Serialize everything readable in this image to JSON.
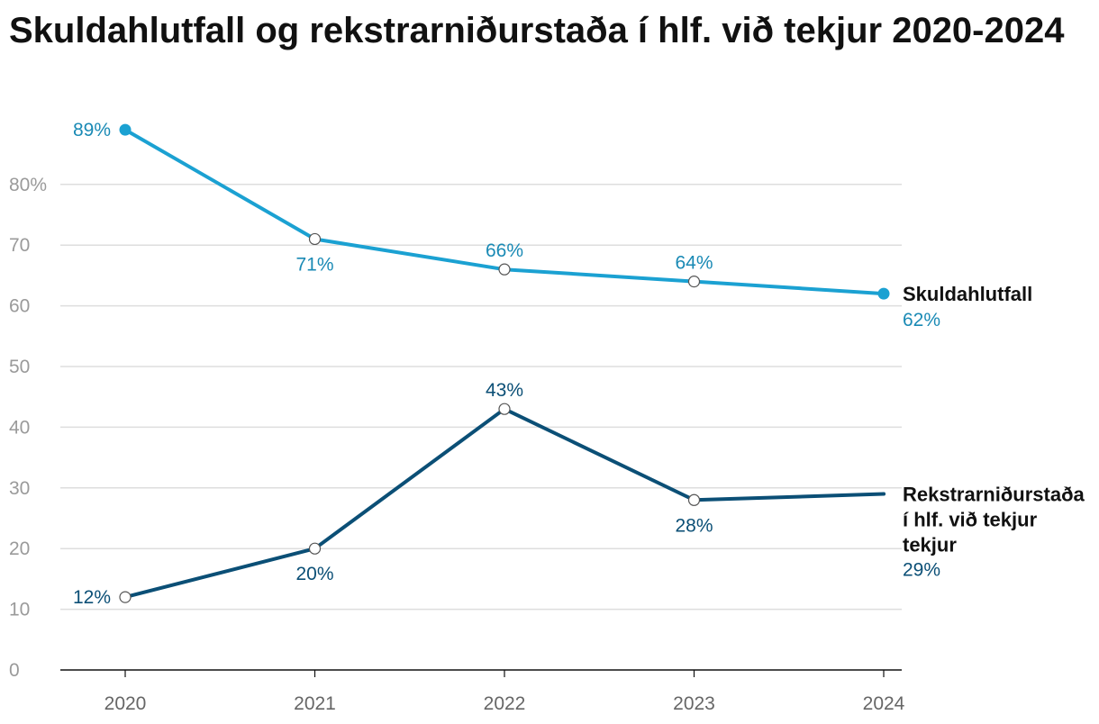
{
  "chart_data": {
    "type": "line",
    "title": "Skuldahlutfall og rekstrarniðurstaða í hlf. við tekjur 2020-2024",
    "x": [
      "2020",
      "2021",
      "2022",
      "2023",
      "2024"
    ],
    "ylim": [
      0,
      90
    ],
    "yticks": [
      0,
      10,
      20,
      30,
      40,
      50,
      60,
      70,
      80
    ],
    "ytick_labels": [
      "0",
      "10",
      "20",
      "30",
      "40",
      "50",
      "60",
      "70",
      "80%"
    ],
    "grid": true,
    "series": [
      {
        "name": "Skuldahlutfall",
        "label_lines": [
          "Skuldahlutfall"
        ],
        "color": "#1ba1d2",
        "label_color": "#1a8ab5",
        "values": [
          89,
          71,
          66,
          64,
          62
        ],
        "labels": [
          "89%",
          "71%",
          "66%",
          "64%",
          "62%"
        ],
        "label_pos": [
          "left",
          "below",
          "above",
          "above",
          "end"
        ]
      },
      {
        "name": "Rekstrarniðurstaða í hlf. við tekjur tekjur",
        "label_lines": [
          "Rekstrarniðurstaða",
          "í hlf. við tekjur",
          "tekjur"
        ],
        "color": "#0b4f76",
        "label_color": "#0b4f76",
        "values": [
          12,
          20,
          43,
          28,
          29
        ],
        "labels": [
          "12%",
          "20%",
          "43%",
          "28%",
          "29%"
        ],
        "label_pos": [
          "left",
          "below",
          "above",
          "below",
          "end"
        ]
      }
    ]
  }
}
